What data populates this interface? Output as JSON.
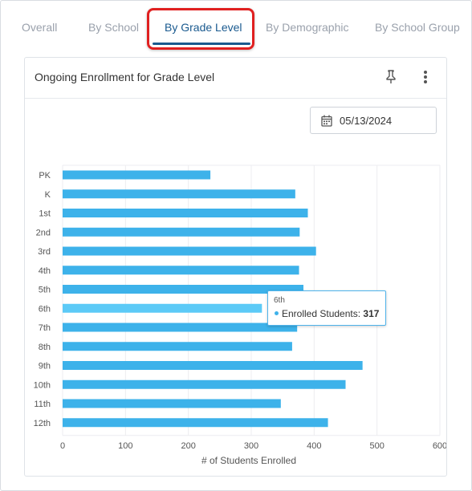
{
  "tabs": [
    {
      "label": "Overall"
    },
    {
      "label": "By School"
    },
    {
      "label": "By Grade Level",
      "active": true
    },
    {
      "label": "By Demographic"
    },
    {
      "label": "By School Group"
    }
  ],
  "card": {
    "title": "Ongoing Enrollment for Grade Level",
    "date": "05/13/2024",
    "icons": [
      "pin-icon",
      "more-vertical-icon",
      "calendar-icon"
    ]
  },
  "tooltip": {
    "category": "6th",
    "series": "Enrolled Students:",
    "value": "317"
  },
  "colors": {
    "bar": "#3db2ea",
    "bar_hover": "#5ccaf7",
    "accent": "#1a5a8f",
    "highlight": "#e02020"
  },
  "chart_data": {
    "type": "bar",
    "orientation": "horizontal",
    "categories": [
      "PK",
      "K",
      "1st",
      "2nd",
      "3rd",
      "4th",
      "5th",
      "6th",
      "7th",
      "8th",
      "9th",
      "10th",
      "11th",
      "12th"
    ],
    "series": [
      {
        "name": "Enrolled Students",
        "values": [
          235,
          370,
          390,
          377,
          403,
          376,
          383,
          317,
          373,
          365,
          477,
          450,
          347,
          422
        ]
      }
    ],
    "xlabel": "# of Students Enrolled",
    "ylabel": "",
    "xlim": [
      0,
      600
    ],
    "xticks": [
      0,
      100,
      200,
      300,
      400,
      500,
      600
    ],
    "grid": true,
    "highlighted_category": "6th"
  }
}
